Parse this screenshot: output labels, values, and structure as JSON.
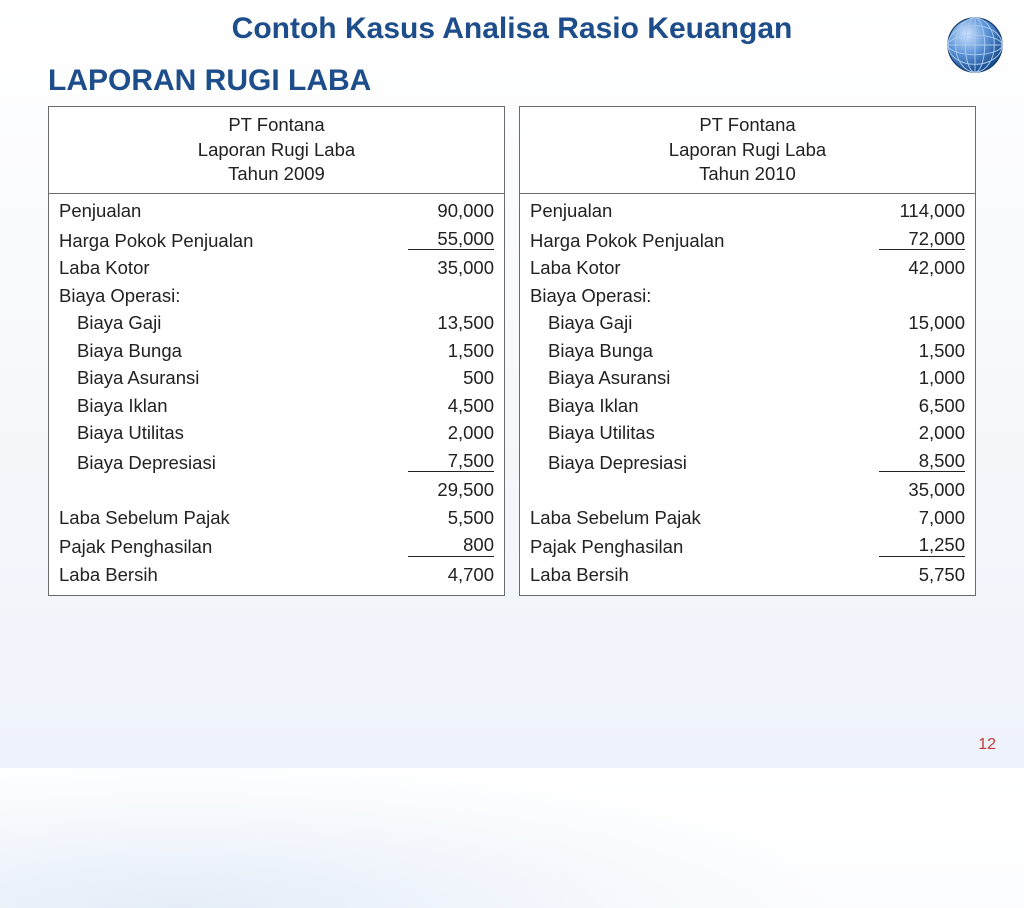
{
  "title": "Contoh Kasus Analisa Rasio Keuangan",
  "subtitle": "LAPORAN RUGI LABA",
  "page_number": "12",
  "colors": {
    "heading": "#1d4d8a",
    "border": "#6b6b6b",
    "text": "#222222",
    "pagenum": "#c23a3a",
    "bg_top": "#ffffff",
    "bg_bottom": "#eef2fa"
  },
  "typography": {
    "title_fontsize_pt": 22,
    "subtitle_fontsize_pt": 22,
    "body_fontsize_pt": 14,
    "font_family": "Arial"
  },
  "tables": [
    {
      "header": {
        "company": "PT Fontana",
        "report": "Laporan Rugi Laba",
        "year": "Tahun 2009"
      },
      "rows": [
        {
          "label": "Penjualan",
          "value": "90,000",
          "indent": false,
          "underline": false
        },
        {
          "label": "Harga Pokok Penjualan",
          "value": "55,000",
          "indent": false,
          "underline": true
        },
        {
          "label": "Laba Kotor",
          "value": "35,000",
          "indent": false,
          "underline": false
        },
        {
          "label": "Biaya Operasi:",
          "value": "",
          "indent": false,
          "underline": false
        },
        {
          "label": "Biaya Gaji",
          "value": "13,500",
          "indent": true,
          "underline": false
        },
        {
          "label": "Biaya Bunga",
          "value": "1,500",
          "indent": true,
          "underline": false
        },
        {
          "label": "Biaya Asuransi",
          "value": "500",
          "indent": true,
          "underline": false
        },
        {
          "label": "Biaya Iklan",
          "value": "4,500",
          "indent": true,
          "underline": false
        },
        {
          "label": "Biaya Utilitas",
          "value": "2,000",
          "indent": true,
          "underline": false
        },
        {
          "label": "Biaya Depresiasi",
          "value": "7,500",
          "indent": true,
          "underline": true
        },
        {
          "label": "",
          "value": "29,500",
          "indent": false,
          "underline": false
        },
        {
          "label": "Laba Sebelum Pajak",
          "value": "5,500",
          "indent": false,
          "underline": false
        },
        {
          "label": "Pajak Penghasilan",
          "value": "800",
          "indent": false,
          "underline": true
        },
        {
          "label": "Laba Bersih",
          "value": "4,700",
          "indent": false,
          "underline": false
        }
      ]
    },
    {
      "header": {
        "company": "PT Fontana",
        "report": "Laporan Rugi Laba",
        "year": "Tahun 2010"
      },
      "rows": [
        {
          "label": "Penjualan",
          "value": "114,000",
          "indent": false,
          "underline": false
        },
        {
          "label": "Harga Pokok Penjualan",
          "value": "72,000",
          "indent": false,
          "underline": true
        },
        {
          "label": "Laba Kotor",
          "value": "42,000",
          "indent": false,
          "underline": false
        },
        {
          "label": "Biaya Operasi:",
          "value": "",
          "indent": false,
          "underline": false
        },
        {
          "label": "Biaya Gaji",
          "value": "15,000",
          "indent": true,
          "underline": false
        },
        {
          "label": "Biaya Bunga",
          "value": "1,500",
          "indent": true,
          "underline": false
        },
        {
          "label": "Biaya Asuransi",
          "value": "1,000",
          "indent": true,
          "underline": false
        },
        {
          "label": "Biaya Iklan",
          "value": "6,500",
          "indent": true,
          "underline": false
        },
        {
          "label": "Biaya Utilitas",
          "value": "2,000",
          "indent": true,
          "underline": false
        },
        {
          "label": "Biaya Depresiasi",
          "value": "8,500",
          "indent": true,
          "underline": true
        },
        {
          "label": "",
          "value": "35,000",
          "indent": false,
          "underline": false
        },
        {
          "label": "Laba Sebelum Pajak",
          "value": "7,000",
          "indent": false,
          "underline": false
        },
        {
          "label": "Pajak Penghasilan",
          "value": "1,250",
          "indent": false,
          "underline": true
        },
        {
          "label": "Laba Bersih",
          "value": "5,750",
          "indent": false,
          "underline": false
        }
      ]
    }
  ]
}
